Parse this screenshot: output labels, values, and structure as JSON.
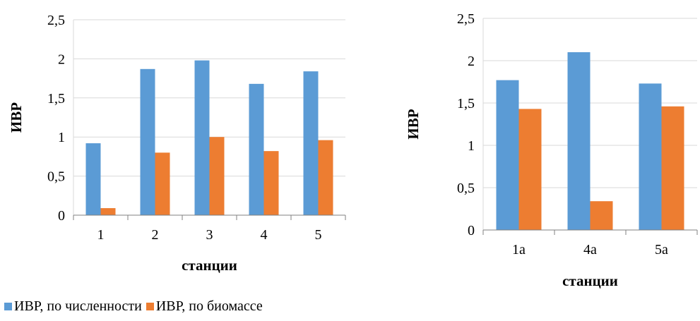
{
  "chart_data": [
    {
      "type": "bar",
      "categories": [
        "1",
        "2",
        "3",
        "4",
        "5"
      ],
      "series": [
        {
          "name": "ИВР, по численности",
          "color": "#5B9BD5",
          "values": [
            0.92,
            1.87,
            1.98,
            1.68,
            1.84
          ]
        },
        {
          "name": "ИВР, по биомассе",
          "color": "#ED7D31",
          "values": [
            0.09,
            0.8,
            1.0,
            0.82,
            0.96
          ]
        }
      ],
      "xlabel": "станции",
      "ylabel": "ИВР",
      "ylim": [
        0,
        2.5
      ],
      "yticks": [
        "0",
        "0,5",
        "1",
        "1,5",
        "2",
        "2,5"
      ],
      "grid": true
    },
    {
      "type": "bar",
      "categories": [
        "1a",
        "4a",
        "5a"
      ],
      "series": [
        {
          "name": "ИВР, по численности",
          "color": "#5B9BD5",
          "values": [
            1.77,
            2.1,
            1.73
          ]
        },
        {
          "name": "ИВР, по биомассе",
          "color": "#ED7D31",
          "values": [
            1.43,
            0.34,
            1.46
          ]
        }
      ],
      "xlabel": "станции",
      "ylabel": "ИВР",
      "ylim": [
        0,
        2.5
      ],
      "yticks": [
        "0",
        "0,5",
        "1",
        "1,5",
        "2",
        "2,5"
      ],
      "grid": true
    }
  ],
  "legend": {
    "position": "bottom-left",
    "items": [
      {
        "label": "ИВР, по численности",
        "color": "#5B9BD5"
      },
      {
        "label": "ИВР, по биомассе",
        "color": "#ED7D31"
      }
    ]
  }
}
